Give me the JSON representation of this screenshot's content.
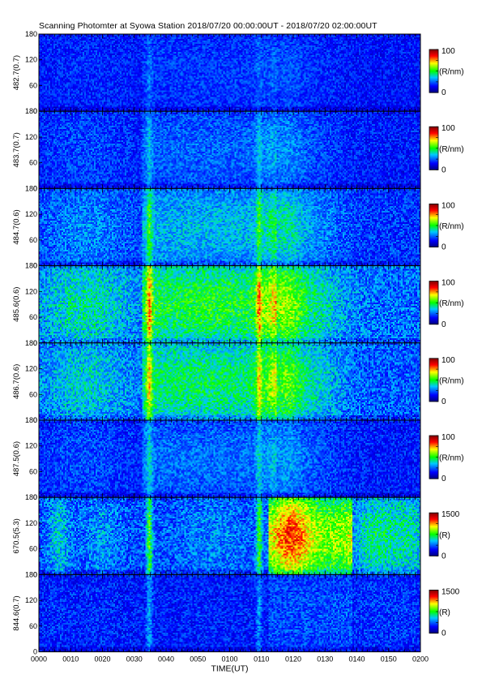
{
  "title": "Scanning Photomter at Syowa Station 2018/07/20 00:00:00UT - 2018/07/20 02:00:00UT",
  "colors": {
    "colormap": [
      "#00007f",
      "#0000ff",
      "#00c8ff",
      "#00ff00",
      "#ffff00",
      "#ff0000",
      "#7f0000"
    ],
    "axis": "#000000"
  },
  "chart_data": {
    "type": "heatmap",
    "title": "Scanning Photomter at Syowa Station 2018/07/20 00:00:00UT - 2018/07/20 02:00:00UT",
    "xlabel": "TIME(UT)",
    "x_ticks": [
      "0000",
      "0010",
      "0020",
      "0030",
      "0040",
      "0050",
      "0100",
      "0110",
      "0120",
      "0130",
      "0140",
      "0150",
      "0200"
    ],
    "y_ticks": [
      "0",
      "60",
      "120",
      "180"
    ],
    "ylim": [
      0,
      180
    ],
    "panels": [
      {
        "ylabel": "482.7(0.7)",
        "colorbar_max": "100",
        "colorbar_min": "0",
        "unit": "(R/nm)",
        "base_level": 0.16,
        "activity": 0.2
      },
      {
        "ylabel": "483.7(0.7)",
        "colorbar_max": "100",
        "colorbar_min": "0",
        "unit": "(R/nm)",
        "base_level": 0.17,
        "activity": 0.35
      },
      {
        "ylabel": "484.7(0.6)",
        "colorbar_max": "100",
        "colorbar_min": "0",
        "unit": "(R/nm)",
        "base_level": 0.2,
        "activity": 0.6
      },
      {
        "ylabel": "485.6(0.6)",
        "colorbar_max": "100",
        "colorbar_min": "0",
        "unit": "(R/nm)",
        "base_level": 0.26,
        "activity": 1.0
      },
      {
        "ylabel": "486.7(0.6)",
        "colorbar_max": "100",
        "colorbar_min": "0",
        "unit": "(R/nm)",
        "base_level": 0.24,
        "activity": 0.9
      },
      {
        "ylabel": "487.5(0.6)",
        "colorbar_max": "100",
        "colorbar_min": "0",
        "unit": "(R/nm)",
        "base_level": 0.17,
        "activity": 0.4
      },
      {
        "ylabel": "670.5(5.3)",
        "colorbar_max": "1500",
        "colorbar_min": "0",
        "unit": "(R)",
        "base_level": 0.22,
        "activity": 1.0
      },
      {
        "ylabel": "844.6(0.7)",
        "colorbar_max": "1500",
        "colorbar_min": "0",
        "unit": "(R)",
        "base_level": 0.17,
        "activity": 0.45
      }
    ]
  }
}
